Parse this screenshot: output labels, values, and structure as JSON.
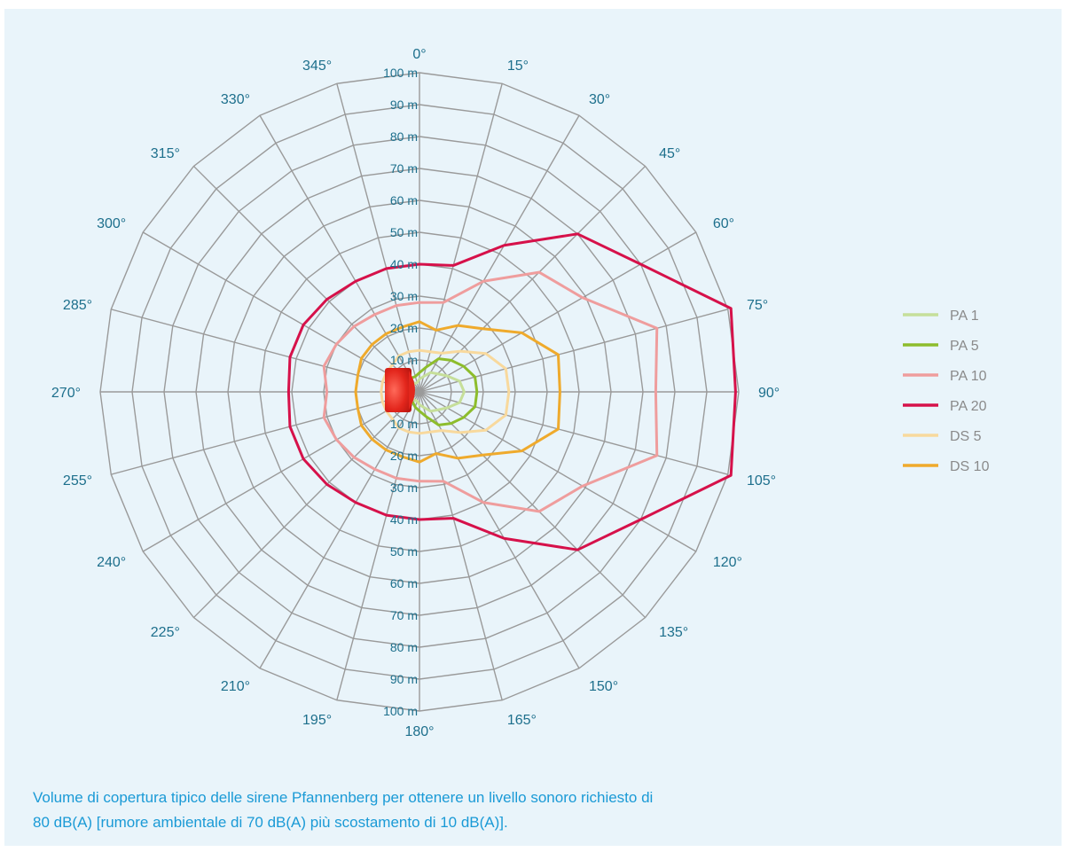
{
  "chart_data": {
    "type": "polar-line",
    "angle_unit": "degrees",
    "angle_labels": [
      "0°",
      "15°",
      "30°",
      "45°",
      "60°",
      "75°",
      "90°",
      "105°",
      "120°",
      "135°",
      "150°",
      "165°",
      "180°",
      "195°",
      "210°",
      "225°",
      "240°",
      "255°",
      "270°",
      "285°",
      "300°",
      "315°",
      "330°",
      "345°"
    ],
    "radial_range": [
      0,
      100
    ],
    "ring_labels": [
      "10 m",
      "20 m",
      "30 m",
      "40 m",
      "50 m",
      "60 m",
      "70 m",
      "80 m",
      "90 m",
      "100 m"
    ],
    "series": [
      {
        "name": "PA 1",
        "color": "#c6df9a",
        "angles": [
          0,
          15,
          30,
          45,
          60,
          75,
          90,
          105,
          120,
          135,
          150,
          165,
          180,
          195,
          210,
          225,
          240,
          255,
          270,
          285,
          300,
          315,
          330,
          345
        ],
        "values": [
          4,
          5,
          7,
          8,
          10,
          13,
          14,
          13,
          10,
          8,
          7,
          5,
          4,
          3,
          3,
          3,
          3,
          3,
          3,
          3,
          3,
          3,
          3,
          3
        ]
      },
      {
        "name": "PA 5",
        "color": "#8dbd2c",
        "angles": [
          0,
          15,
          30,
          45,
          60,
          75,
          90,
          105,
          120,
          135,
          150,
          165,
          180,
          195,
          210,
          225,
          240,
          255,
          270,
          285,
          300,
          315,
          330,
          345
        ],
        "values": [
          6,
          8,
          12,
          14,
          16,
          18,
          18,
          18,
          16,
          14,
          12,
          8,
          6,
          5,
          4,
          4,
          4,
          4,
          4,
          4,
          4,
          4,
          5,
          5
        ]
      },
      {
        "name": "PA 10",
        "color": "#ef9d9d",
        "angles": [
          0,
          15,
          30,
          45,
          60,
          75,
          90,
          105,
          120,
          135,
          150,
          165,
          180,
          195,
          210,
          225,
          240,
          255,
          270,
          285,
          300,
          315,
          330,
          345
        ],
        "values": [
          28,
          29,
          40,
          53,
          59,
          77,
          74,
          77,
          59,
          53,
          40,
          29,
          28,
          28,
          28,
          29,
          30,
          31,
          29,
          31,
          30,
          29,
          28,
          28
        ]
      },
      {
        "name": "PA 20",
        "color": "#d6114a",
        "angles": [
          0,
          15,
          30,
          45,
          60,
          75,
          90,
          105,
          120,
          135,
          150,
          165,
          180,
          195,
          210,
          225,
          240,
          255,
          270,
          285,
          300,
          315,
          330,
          345
        ],
        "values": [
          40,
          41,
          53,
          70,
          80,
          101,
          99,
          101,
          80,
          70,
          53,
          41,
          40,
          40,
          40,
          41,
          42,
          42,
          41,
          42,
          42,
          41,
          40,
          40
        ]
      },
      {
        "name": "DS 5",
        "color": "#f8d99d",
        "angles": [
          0,
          15,
          30,
          45,
          60,
          75,
          90,
          105,
          120,
          135,
          150,
          165,
          180,
          195,
          210,
          225,
          240,
          255,
          270,
          285,
          300,
          315,
          330,
          345
        ],
        "values": [
          13,
          13,
          14,
          18,
          24,
          28,
          28,
          28,
          24,
          18,
          14,
          13,
          13,
          13,
          13,
          12,
          12,
          12,
          12,
          12,
          12,
          12,
          13,
          13
        ]
      },
      {
        "name": "DS 10",
        "color": "#efaa2c",
        "angles": [
          0,
          15,
          30,
          45,
          60,
          75,
          90,
          105,
          120,
          135,
          150,
          165,
          180,
          195,
          210,
          225,
          240,
          255,
          270,
          285,
          300,
          315,
          330,
          345
        ],
        "values": [
          22,
          20,
          24,
          28,
          37,
          45,
          44,
          45,
          37,
          28,
          24,
          20,
          22,
          21,
          21,
          21,
          21,
          20,
          20,
          20,
          21,
          21,
          21,
          21
        ]
      }
    ]
  },
  "caption": {
    "line1": "Volume di copertura tipico delle sirene Pfannenberg per ottenere un livello sonoro richiesto di",
    "line2": "80 dB(A) [rumore ambientale di 70 dB(A) più scostamento di 10 dB(A)]."
  }
}
